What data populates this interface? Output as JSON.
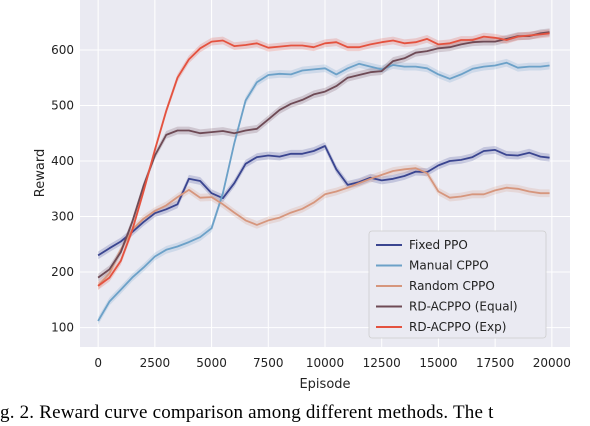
{
  "caption": "g. 2.    Reward curve comparison among different methods. The t",
  "colors": {
    "plot_bg": "#eaeaf2",
    "grid": "#ffffff"
  },
  "chart_data": {
    "type": "line",
    "xlabel": "Episode",
    "ylabel": "Reward",
    "xlim": [
      -800,
      20800
    ],
    "ylim": [
      65,
      690
    ],
    "xticks": [
      0,
      2500,
      5000,
      7500,
      10000,
      12500,
      15000,
      17500,
      20000
    ],
    "xtick_labels": [
      "0",
      "2500",
      "5000",
      "7500",
      "10000",
      "12500",
      "15000",
      "17500",
      "20000"
    ],
    "yticks": [
      100,
      200,
      300,
      400,
      500,
      600
    ],
    "ytick_labels": [
      "100",
      "200",
      "300",
      "400",
      "500",
      "600"
    ],
    "grid": true,
    "legend_position": "lower-right",
    "x": [
      0,
      500,
      1000,
      1500,
      2000,
      2500,
      3000,
      3500,
      4000,
      4500,
      5000,
      5500,
      6000,
      6500,
      7000,
      7500,
      8000,
      8500,
      9000,
      9500,
      10000,
      10500,
      11000,
      11500,
      12000,
      12500,
      13000,
      13500,
      14000,
      14500,
      15000,
      15500,
      16000,
      16500,
      17000,
      17500,
      18000,
      18500,
      19000,
      19500,
      19900
    ],
    "series": [
      {
        "name": "Fixed PPO",
        "color": "#3a4590",
        "values": [
          230,
          243,
          255,
          272,
          290,
          306,
          313,
          322,
          368,
          364,
          342,
          333,
          360,
          395,
          407,
          410,
          408,
          413,
          413,
          418,
          427,
          385,
          357,
          362,
          370,
          365,
          368,
          373,
          381,
          380,
          392,
          400,
          402,
          407,
          418,
          420,
          411,
          410,
          415,
          408,
          406
        ]
      },
      {
        "name": "Manual CPPO",
        "color": "#6ca1c8",
        "values": [
          112,
          147,
          168,
          190,
          208,
          228,
          240,
          246,
          254,
          263,
          279,
          342,
          432,
          509,
          542,
          555,
          557,
          556,
          563,
          565,
          567,
          556,
          567,
          575,
          570,
          565,
          573,
          570,
          570,
          567,
          556,
          548,
          556,
          566,
          570,
          572,
          577,
          568,
          570,
          570,
          572
        ]
      },
      {
        "name": "Random CPPO",
        "color": "#d6967d",
        "values": [
          175,
          198,
          240,
          276,
          296,
          310,
          320,
          335,
          348,
          334,
          335,
          322,
          307,
          293,
          285,
          293,
          298,
          307,
          314,
          325,
          340,
          345,
          352,
          360,
          368,
          375,
          382,
          385,
          387,
          378,
          345,
          334,
          336,
          340,
          340,
          347,
          352,
          350,
          345,
          342,
          342
        ]
      },
      {
        "name": "RD-ACPPO (Equal)",
        "color": "#6e4a55",
        "values": [
          190,
          205,
          236,
          290,
          355,
          410,
          447,
          455,
          455,
          450,
          452,
          454,
          450,
          455,
          458,
          475,
          492,
          503,
          510,
          520,
          525,
          535,
          550,
          555,
          560,
          562,
          580,
          585,
          595,
          598,
          603,
          605,
          610,
          614,
          615,
          615,
          620,
          625,
          625,
          630,
          632
        ]
      },
      {
        "name": "RD-ACPPO (Exp)",
        "color": "#e4523f",
        "values": [
          175,
          190,
          220,
          275,
          345,
          420,
          490,
          550,
          583,
          603,
          615,
          617,
          607,
          609,
          612,
          604,
          606,
          608,
          608,
          605,
          612,
          614,
          605,
          605,
          610,
          614,
          617,
          612,
          614,
          620,
          610,
          612,
          618,
          618,
          624,
          622,
          618,
          624,
          626,
          628,
          630
        ]
      }
    ]
  }
}
